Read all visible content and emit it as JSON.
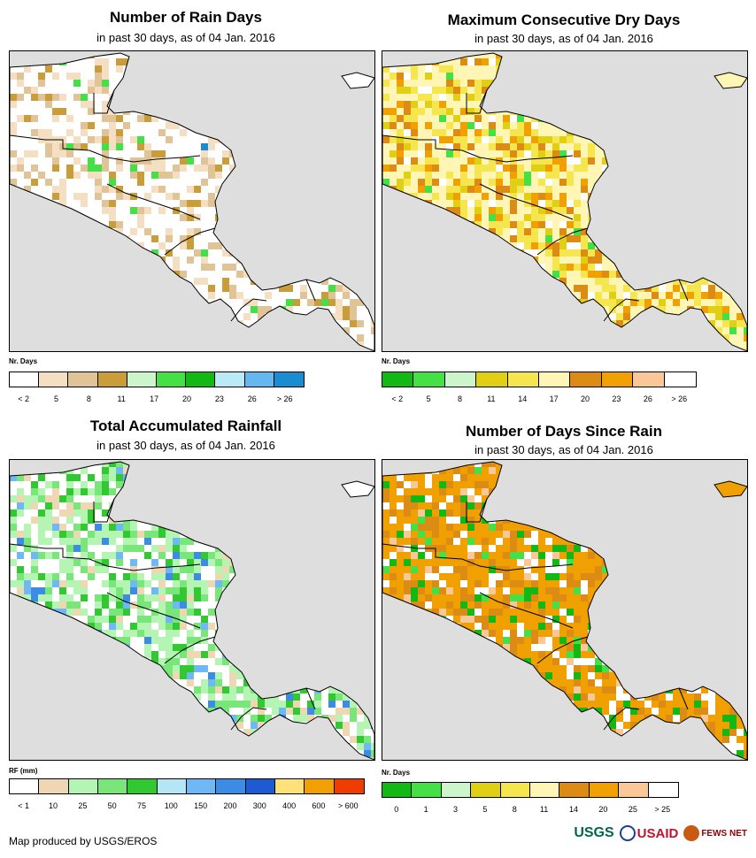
{
  "panels": [
    {
      "title": "Number of Rain Days",
      "subtitle": "in past 30 days, as of 04 Jan. 2016",
      "legend_label": "Nr. Days",
      "legend_colors": [
        "#ffffff",
        "#f5dfc3",
        "#e0c397",
        "#c99e3a",
        "#ccf5cc",
        "#45e045",
        "#14b814",
        "#b9eaf5",
        "#64b8ef",
        "#1a8cd2"
      ],
      "legend_ticks": [
        "< 2",
        "5",
        "8",
        "11",
        "17",
        "20",
        "23",
        "26",
        "> 26"
      ],
      "map_palette": [
        "#ffffff",
        "#f5dfc3",
        "#e0c397",
        "#c99e3a",
        "#45e045",
        "#1a8cd2"
      ],
      "map_weights": [
        58,
        18,
        14,
        6,
        3,
        1
      ]
    },
    {
      "title": "Maximum Consecutive Dry Days",
      "subtitle": "in past 30 days, as of 04 Jan. 2016",
      "legend_label": "Nr. Days",
      "legend_colors": [
        "#14b814",
        "#45e045",
        "#ccf5cc",
        "#e0cf14",
        "#f5e650",
        "#fff5b4",
        "#dc8c14",
        "#f0a000",
        "#fac896",
        "#ffffff"
      ],
      "legend_ticks": [
        "< 2",
        "5",
        "8",
        "11",
        "14",
        "17",
        "20",
        "23",
        "26",
        "> 26"
      ],
      "map_palette": [
        "#fff5b4",
        "#f5e650",
        "#e0cf14",
        "#dc8c14",
        "#f0a000",
        "#ffffff",
        "#45e045"
      ],
      "map_weights": [
        40,
        22,
        8,
        12,
        8,
        8,
        2
      ]
    },
    {
      "title": "Total Accumulated Rainfall",
      "subtitle": "in past 30 days, as of 04 Jan. 2016",
      "legend_label": "RF (mm)",
      "legend_colors": [
        "#ffffff",
        "#f0d7b4",
        "#b4f5b4",
        "#78e678",
        "#32c832",
        "#b4e6f5",
        "#6eb9f5",
        "#3c8ce6",
        "#1e5ad2",
        "#ffe178",
        "#f0a000",
        "#f03c00"
      ],
      "legend_ticks": [
        "< 1",
        "10",
        "25",
        "50",
        "75",
        "100",
        "150",
        "200",
        "300",
        "400",
        "600",
        "> 600"
      ],
      "map_palette": [
        "#ffffff",
        "#f0d7b4",
        "#b4f5b4",
        "#78e678",
        "#32c832",
        "#6eb9f5",
        "#3c8ce6"
      ],
      "map_weights": [
        35,
        8,
        25,
        15,
        8,
        5,
        4
      ]
    },
    {
      "title": "Number of Days Since Rain",
      "subtitle": "in past 30 days, as of 04 Jan. 2016",
      "legend_label": "Nr. Days",
      "legend_colors": [
        "#14b814",
        "#45e045",
        "#ccf5cc",
        "#e0cf14",
        "#f5e650",
        "#fff5b4",
        "#dc8c14",
        "#f0a000",
        "#fac896",
        "#ffffff"
      ],
      "legend_ticks": [
        "0",
        "1",
        "3",
        "5",
        "8",
        "11",
        "14",
        "20",
        "25",
        "> 25"
      ],
      "map_palette": [
        "#f0a000",
        "#dc8c14",
        "#ffffff",
        "#14b814",
        "#45e045",
        "#fac896"
      ],
      "map_weights": [
        50,
        18,
        14,
        8,
        5,
        5
      ]
    }
  ],
  "credit": "Map produced by USGS/EROS",
  "logos": {
    "usgs": "USGS",
    "usaid": "USAID",
    "fews": "FEWS NET"
  }
}
